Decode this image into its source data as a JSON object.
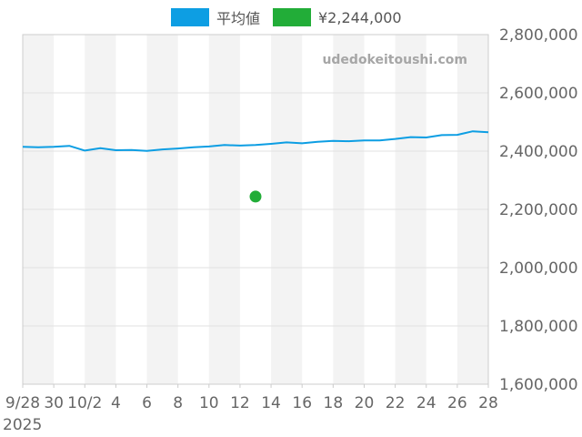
{
  "legend": [
    {
      "label": "平均値",
      "color": "#0d9ee3"
    },
    {
      "label": "¥2,244,000",
      "color": "#22ad38"
    }
  ],
  "watermark": "udedokeitoushi.com",
  "chart_data": {
    "type": "line",
    "title": "",
    "xlabel": "",
    "ylabel": "",
    "x_tick_labels": [
      "9/28",
      "30",
      "10/2",
      "4",
      "6",
      "8",
      "10",
      "12",
      "14",
      "16",
      "18",
      "20",
      "22",
      "24",
      "26",
      "28"
    ],
    "x_year_label": "2025",
    "y_tick_labels": [
      "1,600,000",
      "1,800,000",
      "2,000,000",
      "2,200,000",
      "2,400,000",
      "2,600,000",
      "2,800,000"
    ],
    "ylim": [
      1600000,
      2800000
    ],
    "grid": true,
    "legend_position": "top-center",
    "series": [
      {
        "name": "平均値",
        "type": "line",
        "color": "#0d9ee3",
        "x": [
          "2025-09-28",
          "2025-09-29",
          "2025-09-30",
          "2025-10-01",
          "2025-10-02",
          "2025-10-03",
          "2025-10-04",
          "2025-10-05",
          "2025-10-06",
          "2025-10-07",
          "2025-10-08",
          "2025-10-09",
          "2025-10-10",
          "2025-10-11",
          "2025-10-12",
          "2025-10-13",
          "2025-10-14",
          "2025-10-15",
          "2025-10-16",
          "2025-10-17",
          "2025-10-18",
          "2025-10-19",
          "2025-10-20",
          "2025-10-21",
          "2025-10-22",
          "2025-10-23",
          "2025-10-24",
          "2025-10-25",
          "2025-10-26",
          "2025-10-27",
          "2025-10-28"
        ],
        "values": [
          2415000,
          2413000,
          2415000,
          2418000,
          2402000,
          2410000,
          2403000,
          2404000,
          2401000,
          2406000,
          2409000,
          2413000,
          2416000,
          2421000,
          2419000,
          2421000,
          2425000,
          2430000,
          2427000,
          2432000,
          2435000,
          2434000,
          2437000,
          2437000,
          2442000,
          2448000,
          2447000,
          2455000,
          2456000,
          2468000,
          2465000
        ]
      },
      {
        "name": "¥2,244,000",
        "type": "scatter",
        "color": "#22ad38",
        "x": [
          "2025-10-13"
        ],
        "values": [
          2244000
        ]
      }
    ]
  }
}
